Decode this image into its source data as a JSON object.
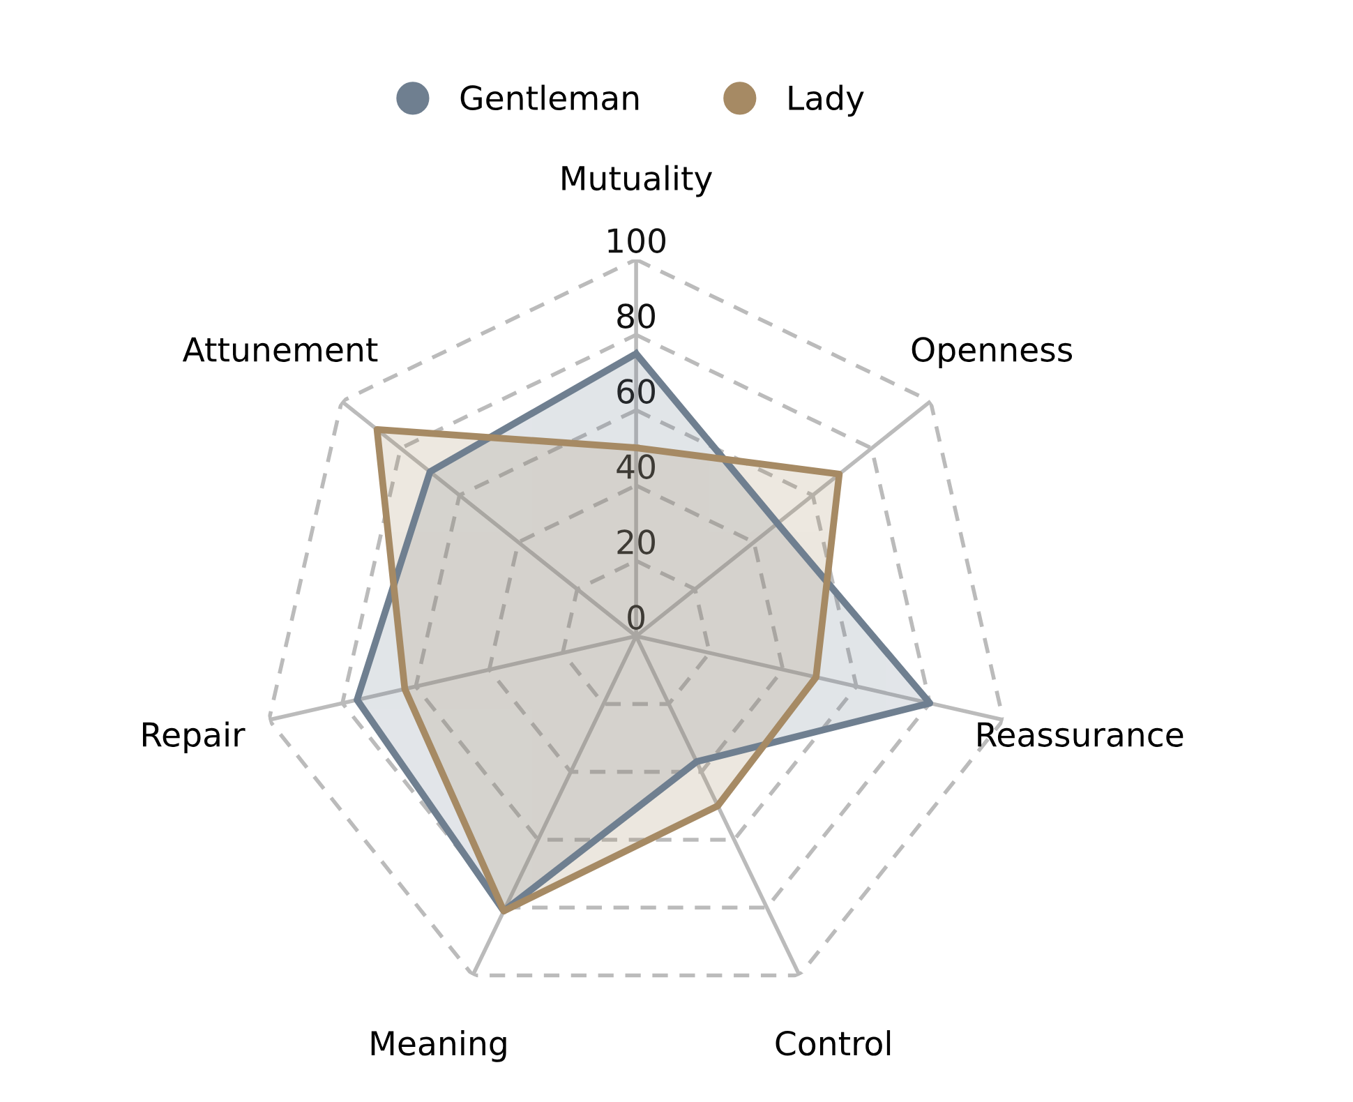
{
  "chart_data": {
    "type": "radar",
    "categories": [
      "Mutuality",
      "Openness",
      "Reassurance",
      "Control",
      "Meaning",
      "Repair",
      "Attunement"
    ],
    "series": [
      {
        "name": "Gentleman",
        "color": "#6f7f90",
        "values": [
          75,
          48,
          80,
          37,
          81,
          76,
          70
        ]
      },
      {
        "name": "Lady",
        "color": "#a68a64",
        "values": [
          50,
          69,
          49,
          50,
          81,
          63,
          88
        ]
      }
    ],
    "ylim": [
      0,
      100
    ],
    "yticks": [
      0,
      20,
      40,
      60,
      80,
      100
    ],
    "grid": true,
    "legend": "top",
    "line_style": "solid",
    "marker": "none"
  }
}
